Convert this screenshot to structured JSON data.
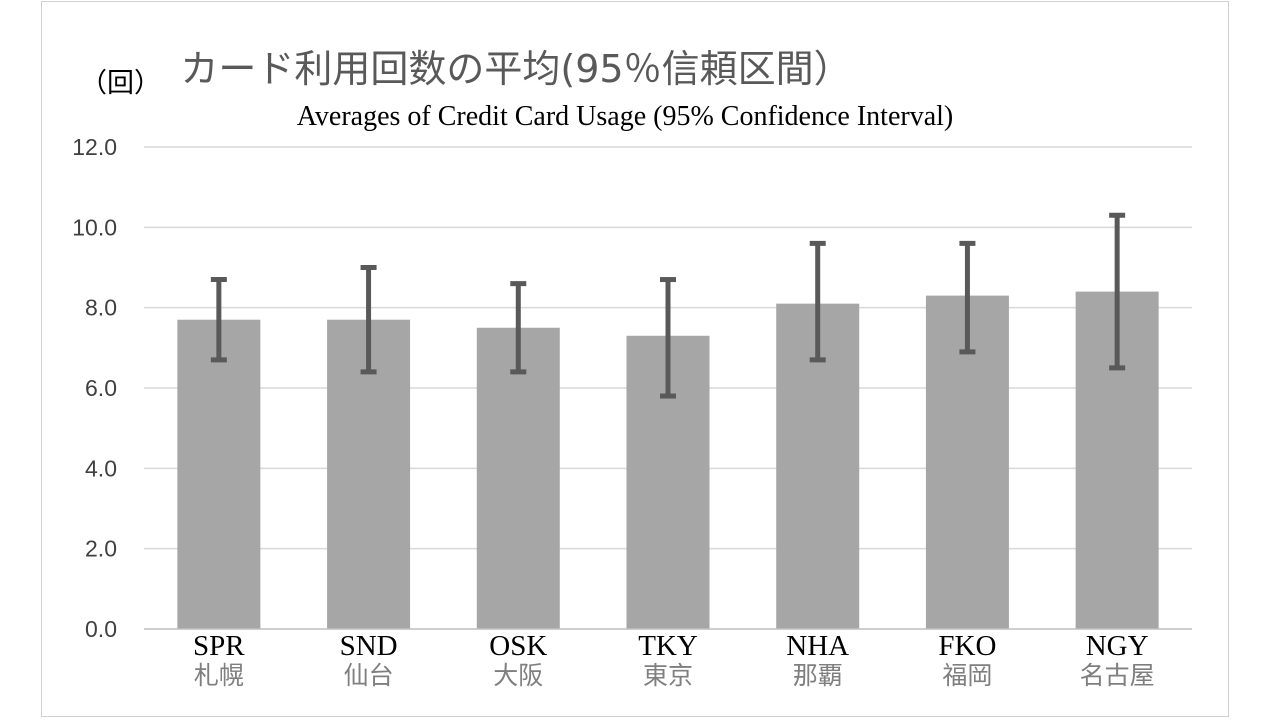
{
  "chart_data": {
    "type": "bar",
    "title": "カード利用回数の平均(95％信頼区間）",
    "subtitle": "Averages of Credit Card Usage (95% Confidence Interval)",
    "unit_label": "（回）",
    "categories": [
      "SPR",
      "SND",
      "OSK",
      "TKY",
      "NHA",
      "FKO",
      "NGY"
    ],
    "categories_ja": [
      "札幌",
      "仙台",
      "大阪",
      "東京",
      "那覇",
      "福岡",
      "名古屋"
    ],
    "values": [
      7.7,
      7.7,
      7.5,
      7.3,
      8.1,
      8.3,
      8.4
    ],
    "ci_lower": [
      6.7,
      6.4,
      6.4,
      5.8,
      6.7,
      6.9,
      6.5
    ],
    "ci_upper": [
      8.7,
      9.0,
      8.6,
      8.7,
      9.6,
      9.6,
      10.3
    ],
    "ylim": [
      0,
      12
    ],
    "yticks": [
      "0.0",
      "2.0",
      "4.0",
      "6.0",
      "8.0",
      "10.0",
      "12.0"
    ],
    "ytick_step": 2,
    "grid": true,
    "legend": "none",
    "colors": {
      "bar": "#a6a6a6",
      "error_bar": "#595959",
      "grid": "#d9d9d9",
      "axis": "#bfbfbf"
    }
  }
}
